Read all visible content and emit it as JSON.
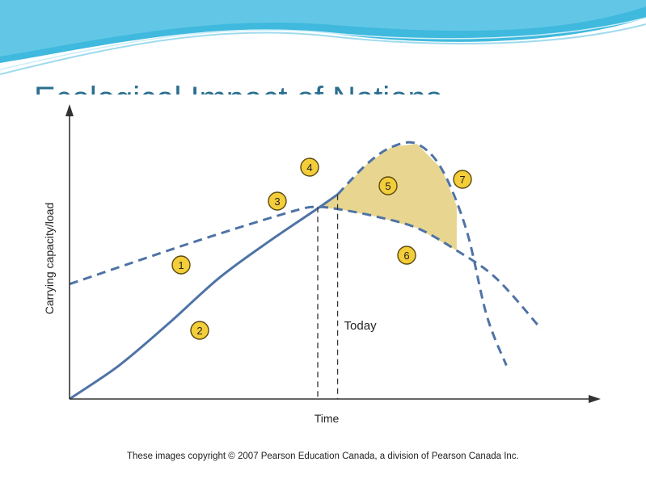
{
  "slide": {
    "title": "Ecological Impact of Nations",
    "copyright": "These images copyright © 2007 Pearson Education Canada, a division of Pearson Canada Inc."
  },
  "colors": {
    "curve": "#4f73a6",
    "shaded_region": "#e8d590",
    "marker_fill": "#f3cd3a",
    "title": "#2a6f8f",
    "header_wave": "#3fb9dd"
  },
  "chart_data": {
    "type": "line",
    "title": "",
    "xlabel": "Time",
    "ylabel": "Carrying capacity/load",
    "ticks_shown": false,
    "grid": false,
    "xlim": [
      0,
      100
    ],
    "ylim": [
      0,
      100
    ],
    "series": [
      {
        "style": "dashed",
        "x": [
          0,
          25,
          45,
          50,
          55,
          62,
          70,
          78,
          86,
          95
        ],
        "y": [
          41,
          56,
          67,
          68.5,
          67.5,
          65,
          61,
          53,
          43,
          25
        ]
      },
      {
        "style": "solid-then-dashed",
        "x": [
          0,
          10,
          20,
          30,
          40,
          50,
          54,
          60,
          65,
          70,
          75,
          80,
          84,
          88
        ],
        "y": [
          0,
          12,
          27,
          43,
          56,
          68,
          73,
          84,
          90,
          91,
          82,
          60,
          30,
          12
        ]
      }
    ],
    "vertical_markers": [
      {
        "x": 50,
        "label": ""
      },
      {
        "x": 54,
        "label": "Today"
      }
    ],
    "shaded_between": {
      "from_x": 50,
      "to_x": 78
    },
    "callouts": [
      "1",
      "2",
      "3",
      "4",
      "5",
      "6",
      "7"
    ]
  }
}
